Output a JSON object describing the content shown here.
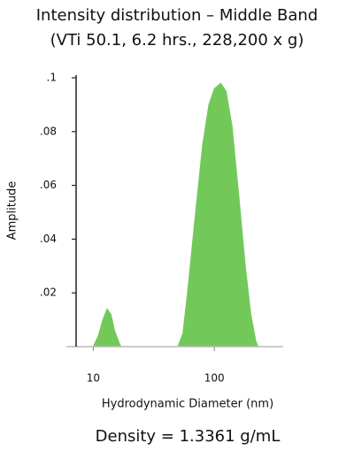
{
  "chart_data": {
    "type": "area",
    "title": "Intensity distribution – Middle Band",
    "subtitle": "(VTi 50.1, 6.2 hrs., 228,200 x g)",
    "x_label": "Hydrodynamic Diameter (nm)",
    "y_label": "Amplitude",
    "annotation": "Density = 1.3361 g/mL",
    "x": [
      10,
      11,
      12,
      13,
      14,
      15,
      16.5,
      17,
      50,
      55,
      60,
      70,
      80,
      90,
      100,
      113,
      125,
      140,
      160,
      180,
      200,
      220,
      230
    ],
    "values": [
      0,
      0.004,
      0.01,
      0.014,
      0.012,
      0.006,
      0.001,
      0,
      0,
      0.005,
      0.02,
      0.05,
      0.075,
      0.09,
      0.096,
      0.098,
      0.095,
      0.082,
      0.055,
      0.03,
      0.012,
      0.002,
      0
    ],
    "color": "#72c95a",
    "x_log": true,
    "xlim": [
      6,
      370
    ],
    "xticks": [
      10,
      100
    ],
    "ylim": [
      0,
      0.1
    ],
    "yticks": [
      {
        "value": 0.02,
        "label": ".02"
      },
      {
        "value": 0.04,
        "label": ".04"
      },
      {
        "value": 0.06,
        "label": ".06"
      },
      {
        "value": 0.08,
        "label": ".08"
      },
      {
        "value": 0.1,
        "label": ".1"
      }
    ]
  }
}
